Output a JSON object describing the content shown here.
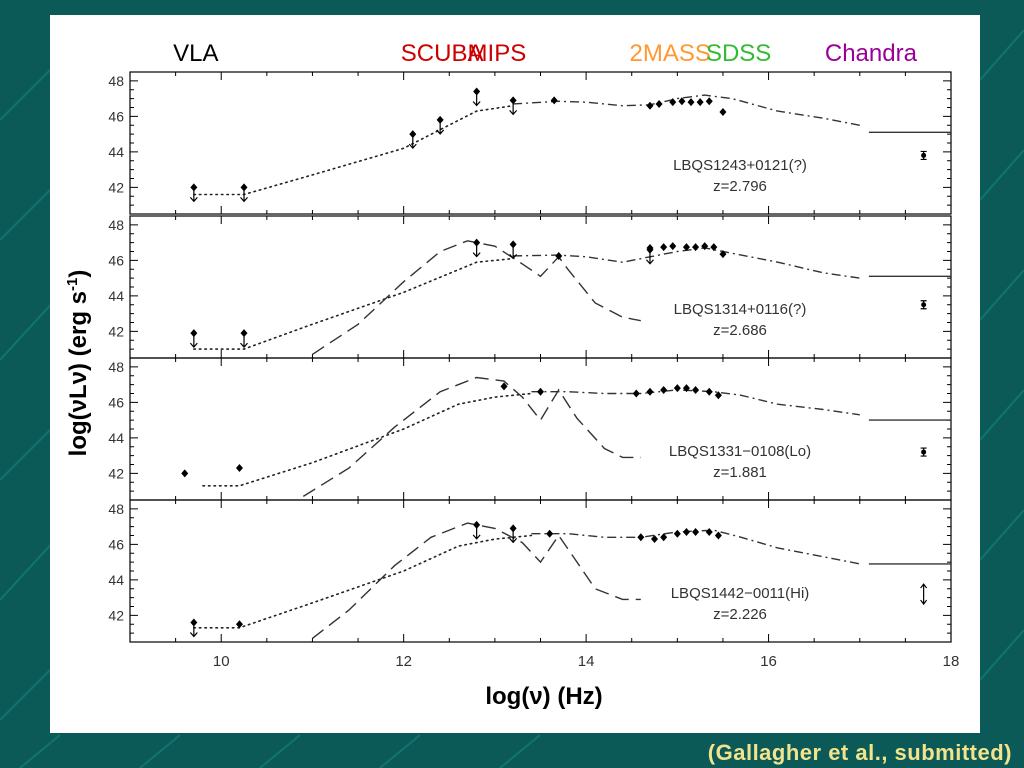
{
  "footer": {
    "credit": "(Gallagher et al., submitted)"
  },
  "chart_data": {
    "type": "scatter",
    "xlabel": "log(ν) (Hz)",
    "ylabel": "log(νLν) (erg s",
    "ylabel_sup": "-1",
    "ylabel_close": ")",
    "xlim": [
      9,
      18
    ],
    "ylim": [
      40.5,
      48.5
    ],
    "xticks": [
      10,
      12,
      14,
      16,
      18
    ],
    "yticks": [
      42,
      44,
      46,
      48
    ],
    "instruments": [
      {
        "name": "VLA",
        "x": 9.7,
        "color": "#000000"
      },
      {
        "name": "SCUBA",
        "x": 12.4,
        "color": "#cc0000"
      },
      {
        "name": "MIPS",
        "x": 13.0,
        "color": "#cc0000"
      },
      {
        "name": "2MASS",
        "x": 14.9,
        "color": "#ff9933"
      },
      {
        "name": "SDSS",
        "x": 15.65,
        "color": "#33bb33"
      },
      {
        "name": "Chandra",
        "x": 17.1,
        "color": "#990099"
      }
    ],
    "panels": [
      {
        "name": "LBQS1243+0121(?)",
        "redshift": "z=2.796",
        "points": [
          [
            14.7,
            46.6
          ],
          [
            14.8,
            46.7
          ],
          [
            14.95,
            46.8
          ],
          [
            15.05,
            46.85
          ],
          [
            15.15,
            46.8
          ],
          [
            15.25,
            46.8
          ],
          [
            15.35,
            46.85
          ],
          [
            15.5,
            46.25
          ],
          [
            13.65,
            46.9
          ]
        ],
        "upper_limits": [
          [
            9.7,
            42.0
          ],
          [
            10.25,
            42.0
          ],
          [
            12.1,
            45.0
          ],
          [
            12.4,
            45.8
          ],
          [
            12.8,
            47.4
          ],
          [
            13.2,
            46.9
          ]
        ],
        "xray": {
          "x": 17.7,
          "y": 43.8,
          "type": "errorbar"
        },
        "model_dotted": [
          [
            9.7,
            41.6
          ],
          [
            10.25,
            41.6
          ],
          [
            11,
            42.7
          ],
          [
            12,
            44.2
          ],
          [
            12.8,
            46.3
          ],
          [
            13.2,
            46.6
          ]
        ],
        "model_dashdot": [
          [
            13.2,
            46.7
          ],
          [
            13.7,
            46.85
          ],
          [
            14,
            46.8
          ],
          [
            14.4,
            46.6
          ],
          [
            14.7,
            46.65
          ],
          [
            15.0,
            47.0
          ],
          [
            15.3,
            47.2
          ],
          [
            15.6,
            47.0
          ],
          [
            16.1,
            46.3
          ],
          [
            16.6,
            45.9
          ],
          [
            17.0,
            45.5
          ]
        ],
        "xray_line": [
          [
            17.1,
            45.1
          ],
          [
            18,
            45.1
          ]
        ],
        "model_dashed": []
      },
      {
        "name": "LBQS1314+0116(?)",
        "redshift": "z=2.686",
        "points": [
          [
            14.7,
            46.7
          ],
          [
            14.85,
            46.75
          ],
          [
            14.95,
            46.8
          ],
          [
            15.1,
            46.75
          ],
          [
            15.2,
            46.75
          ],
          [
            15.3,
            46.8
          ],
          [
            15.4,
            46.75
          ],
          [
            15.5,
            46.35
          ],
          [
            13.7,
            46.25
          ]
        ],
        "upper_limits": [
          [
            9.7,
            41.9
          ],
          [
            10.25,
            41.9
          ],
          [
            12.8,
            47.0
          ],
          [
            13.2,
            46.9
          ],
          [
            14.7,
            46.6
          ]
        ],
        "xray": {
          "x": 17.7,
          "y": 43.5,
          "type": "errorbar"
        },
        "model_dotted": [
          [
            9.7,
            41.0
          ],
          [
            10.25,
            41.0
          ],
          [
            11,
            42.4
          ],
          [
            12,
            44.2
          ],
          [
            12.8,
            45.9
          ],
          [
            13.2,
            46.1
          ]
        ],
        "model_dashdot": [
          [
            13.2,
            46.25
          ],
          [
            13.7,
            46.3
          ],
          [
            14,
            46.2
          ],
          [
            14.4,
            45.9
          ],
          [
            14.7,
            46.2
          ],
          [
            15.0,
            46.5
          ],
          [
            15.3,
            46.7
          ],
          [
            15.6,
            46.4
          ],
          [
            16.1,
            45.9
          ],
          [
            16.6,
            45.3
          ],
          [
            17.0,
            45.0
          ]
        ],
        "xray_line": [
          [
            17.1,
            45.1
          ],
          [
            18,
            45.1
          ]
        ],
        "model_dashed": [
          [
            11,
            40.7
          ],
          [
            11.5,
            42.4
          ],
          [
            12,
            44.8
          ],
          [
            12.4,
            46.5
          ],
          [
            12.7,
            47.1
          ],
          [
            13.0,
            46.8
          ],
          [
            13.3,
            45.8
          ],
          [
            13.5,
            45.1
          ],
          [
            13.7,
            46.2
          ],
          [
            13.8,
            45.5
          ],
          [
            14.1,
            43.6
          ],
          [
            14.4,
            42.8
          ],
          [
            14.6,
            42.6
          ]
        ]
      },
      {
        "name": "LBQS1331−0108(Lo)",
        "redshift": "z=1.881",
        "points": [
          [
            9.6,
            42.0
          ],
          [
            10.2,
            42.3
          ],
          [
            13.1,
            46.9
          ],
          [
            13.5,
            46.6
          ],
          [
            14.55,
            46.5
          ],
          [
            14.7,
            46.6
          ],
          [
            14.85,
            46.7
          ],
          [
            15.0,
            46.8
          ],
          [
            15.1,
            46.8
          ],
          [
            15.2,
            46.7
          ],
          [
            15.35,
            46.6
          ],
          [
            15.45,
            46.4
          ]
        ],
        "upper_limits": [],
        "xray": {
          "x": 17.7,
          "y": 43.2,
          "type": "errorbar"
        },
        "model_dotted": [
          [
            9.8,
            41.3
          ],
          [
            10.2,
            41.3
          ],
          [
            11,
            42.6
          ],
          [
            12,
            44.5
          ],
          [
            12.6,
            45.9
          ],
          [
            13.0,
            46.3
          ],
          [
            13.4,
            46.5
          ]
        ],
        "model_dashdot": [
          [
            13.4,
            46.6
          ],
          [
            13.8,
            46.6
          ],
          [
            14.2,
            46.5
          ],
          [
            14.6,
            46.5
          ],
          [
            15.0,
            46.7
          ],
          [
            15.4,
            46.6
          ],
          [
            15.7,
            46.4
          ],
          [
            16.1,
            45.9
          ],
          [
            16.6,
            45.6
          ],
          [
            17.0,
            45.3
          ]
        ],
        "xray_line": [
          [
            17.1,
            45.0
          ],
          [
            18,
            45.0
          ]
        ],
        "model_dashed": [
          [
            10.9,
            40.7
          ],
          [
            11.4,
            42.3
          ],
          [
            11.9,
            44.6
          ],
          [
            12.4,
            46.6
          ],
          [
            12.8,
            47.4
          ],
          [
            13.1,
            47.2
          ],
          [
            13.3,
            46.3
          ],
          [
            13.5,
            45.0
          ],
          [
            13.7,
            46.7
          ],
          [
            13.9,
            45.1
          ],
          [
            14.2,
            43.4
          ],
          [
            14.4,
            42.9
          ],
          [
            14.6,
            42.9
          ]
        ]
      },
      {
        "name": "LBQS1442−0011(Hi)",
        "redshift": "z=2.226",
        "points": [
          [
            10.2,
            41.5
          ],
          [
            13.6,
            46.6
          ],
          [
            14.6,
            46.4
          ],
          [
            14.75,
            46.3
          ],
          [
            14.85,
            46.4
          ],
          [
            15.0,
            46.6
          ],
          [
            15.1,
            46.7
          ],
          [
            15.2,
            46.7
          ],
          [
            15.35,
            46.7
          ],
          [
            15.45,
            46.5
          ]
        ],
        "upper_limits": [
          [
            9.7,
            41.6
          ],
          [
            12.8,
            47.1
          ],
          [
            13.2,
            46.9
          ]
        ],
        "xray": {
          "x": 17.7,
          "y": 43.2,
          "type": "range"
        },
        "model_dotted": [
          [
            9.7,
            41.3
          ],
          [
            10.2,
            41.3
          ],
          [
            11,
            42.7
          ],
          [
            12,
            44.5
          ],
          [
            12.6,
            45.9
          ],
          [
            13.0,
            46.3
          ],
          [
            13.4,
            46.5
          ]
        ],
        "model_dashdot": [
          [
            13.4,
            46.6
          ],
          [
            13.8,
            46.6
          ],
          [
            14.2,
            46.4
          ],
          [
            14.6,
            46.4
          ],
          [
            15.0,
            46.7
          ],
          [
            15.4,
            46.8
          ],
          [
            15.7,
            46.4
          ],
          [
            16.1,
            45.8
          ],
          [
            16.6,
            45.3
          ],
          [
            17.0,
            44.9
          ]
        ],
        "xray_line": [
          [
            17.1,
            44.9
          ],
          [
            18,
            44.9
          ]
        ],
        "model_dashed": [
          [
            11,
            40.7
          ],
          [
            11.4,
            42.3
          ],
          [
            11.9,
            44.8
          ],
          [
            12.3,
            46.4
          ],
          [
            12.7,
            47.2
          ],
          [
            13.0,
            46.9
          ],
          [
            13.3,
            46.1
          ],
          [
            13.5,
            45.0
          ],
          [
            13.7,
            46.5
          ],
          [
            13.9,
            45.0
          ],
          [
            14.1,
            43.5
          ],
          [
            14.4,
            42.9
          ],
          [
            14.6,
            42.9
          ]
        ]
      }
    ]
  }
}
